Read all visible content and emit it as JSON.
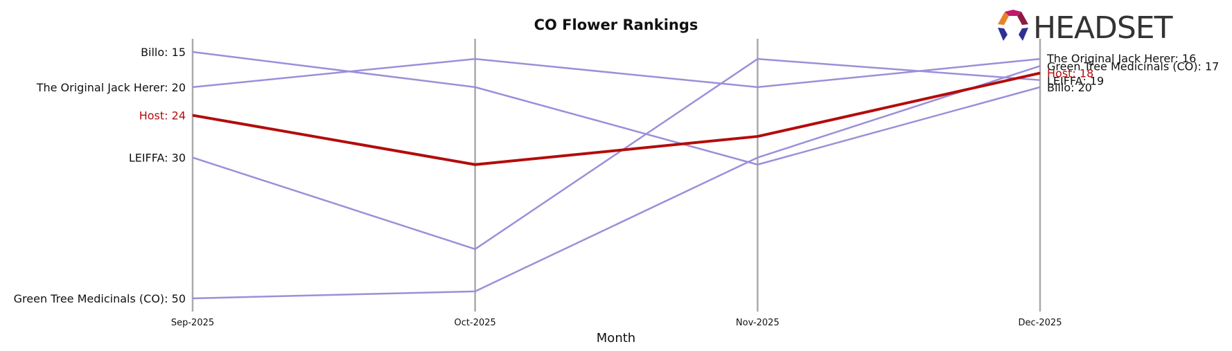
{
  "brand": {
    "logo_text": "HEADSET",
    "logo_colors": [
      "#e8822a",
      "#c4176b",
      "#8e1a3f",
      "#2e3192"
    ]
  },
  "chart_data": {
    "type": "line",
    "title": "CO Flower Rankings",
    "xlabel": "Month",
    "ylabel": "",
    "y_inverted": true,
    "ylim": [
      10,
      50
    ],
    "grid": false,
    "categories": [
      "Sep-2025",
      "Oct-2025",
      "Nov-2025",
      "Dec-2025"
    ],
    "series": [
      {
        "name": "Billo",
        "values": [
          15,
          20,
          31,
          20
        ],
        "color": "#9b8fd9",
        "highlight": false,
        "start_label": "Billo: 15",
        "end_label": "Billo: 20"
      },
      {
        "name": "The Original Jack Herer",
        "values": [
          20,
          16,
          20,
          16
        ],
        "color": "#9b8fd9",
        "highlight": false,
        "start_label": "The Original Jack Herer: 20",
        "end_label": "The Original Jack Herer: 16"
      },
      {
        "name": "LEIFFA",
        "values": [
          30,
          43,
          16,
          19
        ],
        "color": "#9b8fd9",
        "highlight": false,
        "start_label": "LEIFFA: 30",
        "end_label": "LEIFFA: 19"
      },
      {
        "name": "Green Tree Medicinals (CO)",
        "values": [
          50,
          49,
          30,
          17
        ],
        "color": "#9b8fd9",
        "highlight": false,
        "start_label": "Green Tree Medicinals (CO): 50",
        "end_label": "Green Tree Medicinals (CO): 17"
      },
      {
        "name": "Host",
        "values": [
          24,
          31,
          27,
          18
        ],
        "color": "#b30c0c",
        "highlight": true,
        "start_label": "Host: 24",
        "end_label": "Host: 18"
      }
    ]
  }
}
